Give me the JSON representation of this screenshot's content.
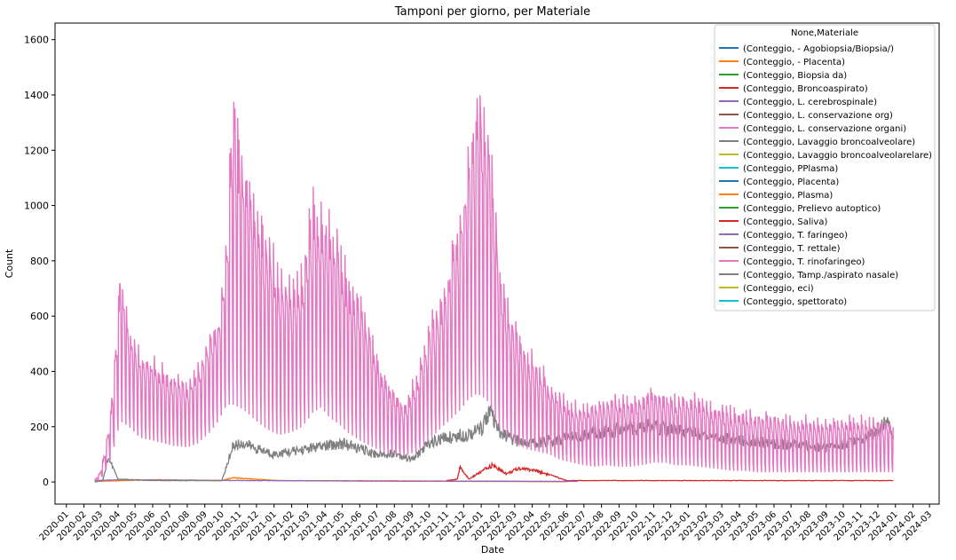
{
  "chart_data": {
    "type": "line",
    "title": "Tamponi per giorno, per Materiale",
    "xlabel": "Date",
    "ylabel": "Count",
    "ylim": [
      -80,
      1660
    ],
    "xlim": [
      "2019-12-12",
      "2024-03-18"
    ],
    "yticks": [
      0,
      200,
      400,
      600,
      800,
      1000,
      1200,
      1400,
      1600
    ],
    "xticks": [
      "2020-01",
      "2020-02",
      "2020-03",
      "2020-04",
      "2020-05",
      "2020-06",
      "2020-07",
      "2020-08",
      "2020-09",
      "2020-10",
      "2020-11",
      "2020-12",
      "2021-01",
      "2021-02",
      "2021-03",
      "2021-04",
      "2021-05",
      "2021-06",
      "2021-07",
      "2021-08",
      "2021-09",
      "2021-10",
      "2021-11",
      "2021-12",
      "2022-01",
      "2022-02",
      "2022-03",
      "2022-04",
      "2022-05",
      "2022-06",
      "2022-07",
      "2022-08",
      "2022-09",
      "2022-10",
      "2022-11",
      "2022-12",
      "2023-01",
      "2023-02",
      "2023-03",
      "2023-04",
      "2023-05",
      "2023-06",
      "2023-07",
      "2023-08",
      "2023-09",
      "2023-10",
      "2023-11",
      "2023-12",
      "2024-01",
      "2024-02",
      "2024-03"
    ],
    "grid": false,
    "legend": {
      "title": "None,Materiale",
      "placement": "upper right",
      "entries": [
        {
          "label": "(Conteggio, - Agobiopsia/Biopsia/)",
          "color": "#1f77b4"
        },
        {
          "label": "(Conteggio, - Placenta)",
          "color": "#ff7f0e"
        },
        {
          "label": "(Conteggio, Biopsia da)",
          "color": "#2ca02c"
        },
        {
          "label": "(Conteggio, Broncoaspirato)",
          "color": "#d62728"
        },
        {
          "label": "(Conteggio, L. cerebrospinale)",
          "color": "#9467bd"
        },
        {
          "label": "(Conteggio, L. conservazione org)",
          "color": "#8c564b"
        },
        {
          "label": "(Conteggio, L. conservazione organi)",
          "color": "#e377c2"
        },
        {
          "label": "(Conteggio, Lavaggio broncoalveolare)",
          "color": "#7f7f7f"
        },
        {
          "label": "(Conteggio, Lavaggio broncoalveolarelare)",
          "color": "#bcbd22"
        },
        {
          "label": "(Conteggio, PPlasma)",
          "color": "#17becf"
        },
        {
          "label": "(Conteggio, Placenta)",
          "color": "#1f77b4"
        },
        {
          "label": "(Conteggio, Plasma)",
          "color": "#ff7f0e"
        },
        {
          "label": "(Conteggio, Prelievo autoptico)",
          "color": "#2ca02c"
        },
        {
          "label": "(Conteggio, Saliva)",
          "color": "#d62728"
        },
        {
          "label": "(Conteggio, T. faringeo)",
          "color": "#9467bd"
        },
        {
          "label": "(Conteggio, T. rettale)",
          "color": "#8c564b"
        },
        {
          "label": "(Conteggio, T. rinofaringeo)",
          "color": "#e377c2"
        },
        {
          "label": "(Conteggio, Tamp./aspirato nasale)",
          "color": "#7f7f7f"
        },
        {
          "label": "(Conteggio, eci)",
          "color": "#bcbd22"
        },
        {
          "label": "(Conteggio, spettorato)",
          "color": "#17becf"
        }
      ]
    },
    "series": [
      {
        "name": "(Conteggio, T. rinofaringeo)",
        "color": "#e377c2",
        "note_shape": "weekly oscillation between low and high envelopes",
        "x": [
          "2020-02-20",
          "2020-03-01",
          "2020-03-10",
          "2020-03-20",
          "2020-03-28",
          "2020-04-05",
          "2020-04-20",
          "2020-05-10",
          "2020-06-01",
          "2020-06-20",
          "2020-07-10",
          "2020-08-01",
          "2020-08-20",
          "2020-09-10",
          "2020-09-25",
          "2020-10-10",
          "2020-10-20",
          "2020-11-01",
          "2020-11-15",
          "2020-12-01",
          "2020-12-20",
          "2021-01-10",
          "2021-02-01",
          "2021-02-20",
          "2021-03-10",
          "2021-03-25",
          "2021-04-10",
          "2021-04-25",
          "2021-05-10",
          "2021-06-01",
          "2021-06-20",
          "2021-07-10",
          "2021-08-01",
          "2021-08-20",
          "2021-09-10",
          "2021-09-25",
          "2021-10-10",
          "2021-10-25",
          "2021-11-10",
          "2021-11-25",
          "2021-12-10",
          "2021-12-25",
          "2022-01-10",
          "2022-01-20",
          "2022-02-01",
          "2022-02-15",
          "2022-03-01",
          "2022-03-20",
          "2022-04-10",
          "2022-05-01",
          "2022-05-20",
          "2022-06-10",
          "2022-07-01",
          "2022-07-20",
          "2022-08-10",
          "2022-09-01",
          "2022-09-20",
          "2022-10-10",
          "2022-11-01",
          "2022-11-20",
          "2022-12-10",
          "2023-01-01",
          "2023-01-20",
          "2023-02-10",
          "2023-03-01",
          "2023-03-20",
          "2023-04-10",
          "2023-05-01",
          "2023-05-20",
          "2023-06-10",
          "2023-07-01",
          "2023-07-20",
          "2023-08-10",
          "2023-09-01",
          "2023-09-20",
          "2023-10-10",
          "2023-11-01",
          "2023-11-20",
          "2023-12-10",
          "2023-12-28"
        ],
        "high": [
          10,
          40,
          130,
          300,
          520,
          850,
          620,
          500,
          470,
          430,
          400,
          380,
          450,
          580,
          620,
          950,
          1560,
          1330,
          1250,
          1100,
          950,
          800,
          760,
          820,
          1100,
          1050,
          1000,
          920,
          800,
          720,
          580,
          420,
          360,
          300,
          420,
          560,
          650,
          720,
          900,
          1050,
          1250,
          1530,
          1460,
          1200,
          880,
          700,
          620,
          520,
          470,
          380,
          340,
          300,
          300,
          320,
          330,
          330,
          320,
          340,
          360,
          350,
          330,
          340,
          320,
          300,
          290,
          280,
          270,
          260,
          270,
          260,
          240,
          250,
          240,
          230,
          250,
          250,
          245,
          240,
          240,
          230
        ],
        "low": [
          0,
          10,
          40,
          90,
          150,
          220,
          200,
          160,
          150,
          140,
          130,
          125,
          140,
          180,
          220,
          280,
          280,
          270,
          250,
          220,
          190,
          170,
          180,
          200,
          250,
          270,
          230,
          210,
          180,
          150,
          130,
          110,
          100,
          95,
          110,
          140,
          170,
          200,
          230,
          260,
          300,
          320,
          300,
          260,
          200,
          170,
          140,
          120,
          110,
          100,
          80,
          70,
          60,
          55,
          60,
          55,
          55,
          60,
          70,
          70,
          60,
          60,
          55,
          50,
          45,
          40,
          40,
          35,
          35,
          35,
          35,
          35,
          35,
          35,
          35,
          35,
          35,
          35,
          35,
          35
        ]
      },
      {
        "name": "(Conteggio, Tamp./aspirato nasale)",
        "color": "#7f7f7f",
        "x": [
          "2020-02-20",
          "2020-03-05",
          "2020-03-15",
          "2020-04-01",
          "2020-06-01",
          "2020-09-01",
          "2020-10-01",
          "2020-10-10",
          "2020-10-20",
          "2020-11-10",
          "2020-12-01",
          "2021-01-01",
          "2021-02-01",
          "2021-03-01",
          "2021-04-01",
          "2021-05-01",
          "2021-06-01",
          "2021-07-01",
          "2021-08-01",
          "2021-09-01",
          "2021-10-01",
          "2021-11-01",
          "2021-12-01",
          "2022-01-01",
          "2022-01-15",
          "2022-02-01",
          "2022-03-01",
          "2022-04-01",
          "2022-05-01",
          "2022-06-01",
          "2022-07-01",
          "2022-08-01",
          "2022-09-01",
          "2022-10-01",
          "2022-11-01",
          "2022-12-01",
          "2023-01-01",
          "2023-02-01",
          "2023-03-01",
          "2023-04-01",
          "2023-05-01",
          "2023-06-01",
          "2023-07-01",
          "2023-08-01",
          "2023-09-01",
          "2023-10-01",
          "2023-11-01",
          "2023-12-01",
          "2023-12-20",
          "2023-12-28"
        ],
        "y": [
          0,
          5,
          90,
          10,
          5,
          5,
          5,
          60,
          130,
          140,
          120,
          100,
          110,
          120,
          130,
          140,
          120,
          100,
          105,
          80,
          140,
          160,
          170,
          190,
          260,
          180,
          150,
          140,
          150,
          160,
          170,
          180,
          190,
          195,
          200,
          190,
          180,
          170,
          160,
          150,
          145,
          140,
          135,
          130,
          125,
          140,
          150,
          180,
          230,
          170
        ]
      },
      {
        "name": "(Conteggio, Plasma)",
        "color": "#ff7f0e",
        "x": [
          "2020-02-20",
          "2020-06-01",
          "2020-10-01",
          "2020-10-20",
          "2020-11-15",
          "2020-12-15",
          "2021-01-10",
          "2021-06-01",
          "2022-01-01",
          "2022-06-01"
        ],
        "y": [
          2,
          8,
          5,
          15,
          12,
          8,
          5,
          3,
          2,
          1
        ]
      },
      {
        "name": "(Conteggio, Saliva)",
        "color": "#d62728",
        "x": [
          "2021-11-01",
          "2021-11-20",
          "2021-11-25",
          "2021-12-10",
          "2022-01-20",
          "2022-02-15",
          "2022-03-10",
          "2022-04-10",
          "2022-06-01",
          "2023-01-01",
          "2023-06-01",
          "2023-12-28"
        ],
        "y": [
          5,
          10,
          55,
          10,
          60,
          30,
          50,
          40,
          5,
          5,
          5,
          5
        ]
      },
      {
        "name": "(Conteggio, T. faringeo)",
        "color": "#9467bd",
        "x": [
          "2020-02-20",
          "2020-04-01",
          "2020-08-01",
          "2020-12-01",
          "2021-06-01",
          "2022-01-01",
          "2022-06-20"
        ],
        "y": [
          5,
          8,
          6,
          5,
          4,
          3,
          2
        ]
      }
    ]
  }
}
